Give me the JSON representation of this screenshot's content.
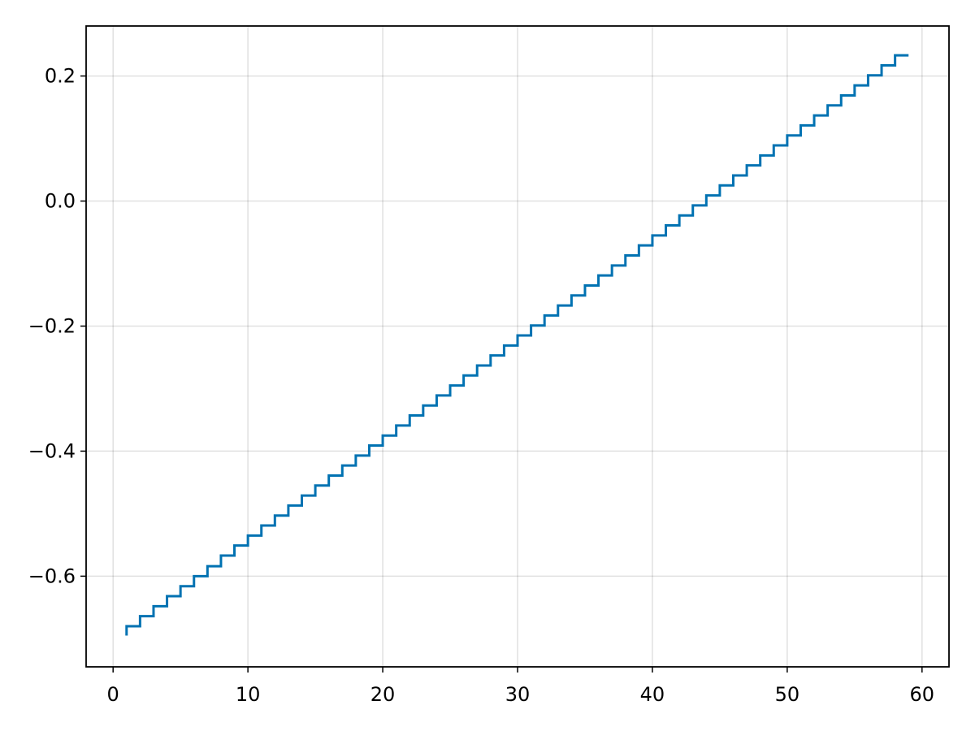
{
  "chart_data": {
    "type": "line",
    "step": "post",
    "title": "",
    "xlabel": "",
    "ylabel": "",
    "xlim": [
      -2,
      62
    ],
    "ylim": [
      -0.745,
      0.28
    ],
    "xticks": [
      0,
      10,
      20,
      30,
      40,
      50,
      60
    ],
    "xtick_labels": [
      "0",
      "10",
      "20",
      "30",
      "40",
      "50",
      "60"
    ],
    "yticks": [
      -0.6,
      -0.4,
      -0.2,
      0.0,
      0.2
    ],
    "ytick_labels": [
      "−0.6",
      "−0.4",
      "−0.2",
      "0.0",
      "0.2"
    ],
    "grid": true,
    "legend": "none",
    "colors": {
      "series": "#0072b2",
      "grid": "#000000",
      "frame": "#000000"
    },
    "series": [
      {
        "x": [
          1,
          2,
          3,
          4,
          5,
          6,
          7,
          8,
          9,
          10,
          11,
          12,
          13,
          14,
          15,
          16,
          17,
          18,
          19,
          20,
          21,
          22,
          23,
          24,
          25,
          26,
          27,
          28,
          29,
          30,
          31,
          32,
          33,
          34,
          35,
          36,
          37,
          38,
          39,
          40,
          41,
          42,
          43,
          44,
          45,
          46,
          47,
          48,
          49,
          50,
          51,
          52,
          53,
          54,
          55,
          56,
          57,
          58,
          59
        ],
        "values": [
          -0.68,
          -0.664,
          -0.648,
          -0.632,
          -0.616,
          -0.6,
          -0.584,
          -0.567,
          -0.551,
          -0.535,
          -0.519,
          -0.503,
          -0.487,
          -0.471,
          -0.455,
          -0.439,
          -0.423,
          -0.407,
          -0.391,
          -0.375,
          -0.359,
          -0.343,
          -0.327,
          -0.311,
          -0.295,
          -0.279,
          -0.263,
          -0.247,
          -0.231,
          -0.215,
          -0.199,
          -0.183,
          -0.167,
          -0.151,
          -0.135,
          -0.119,
          -0.103,
          -0.087,
          -0.071,
          -0.055,
          -0.039,
          -0.023,
          -0.007,
          0.009,
          0.025,
          0.041,
          0.057,
          0.073,
          0.089,
          0.105,
          0.121,
          0.137,
          0.153,
          0.169,
          0.185,
          0.201,
          0.217,
          0.233,
          0.233
        ],
        "start_value": -0.695
      }
    ]
  }
}
